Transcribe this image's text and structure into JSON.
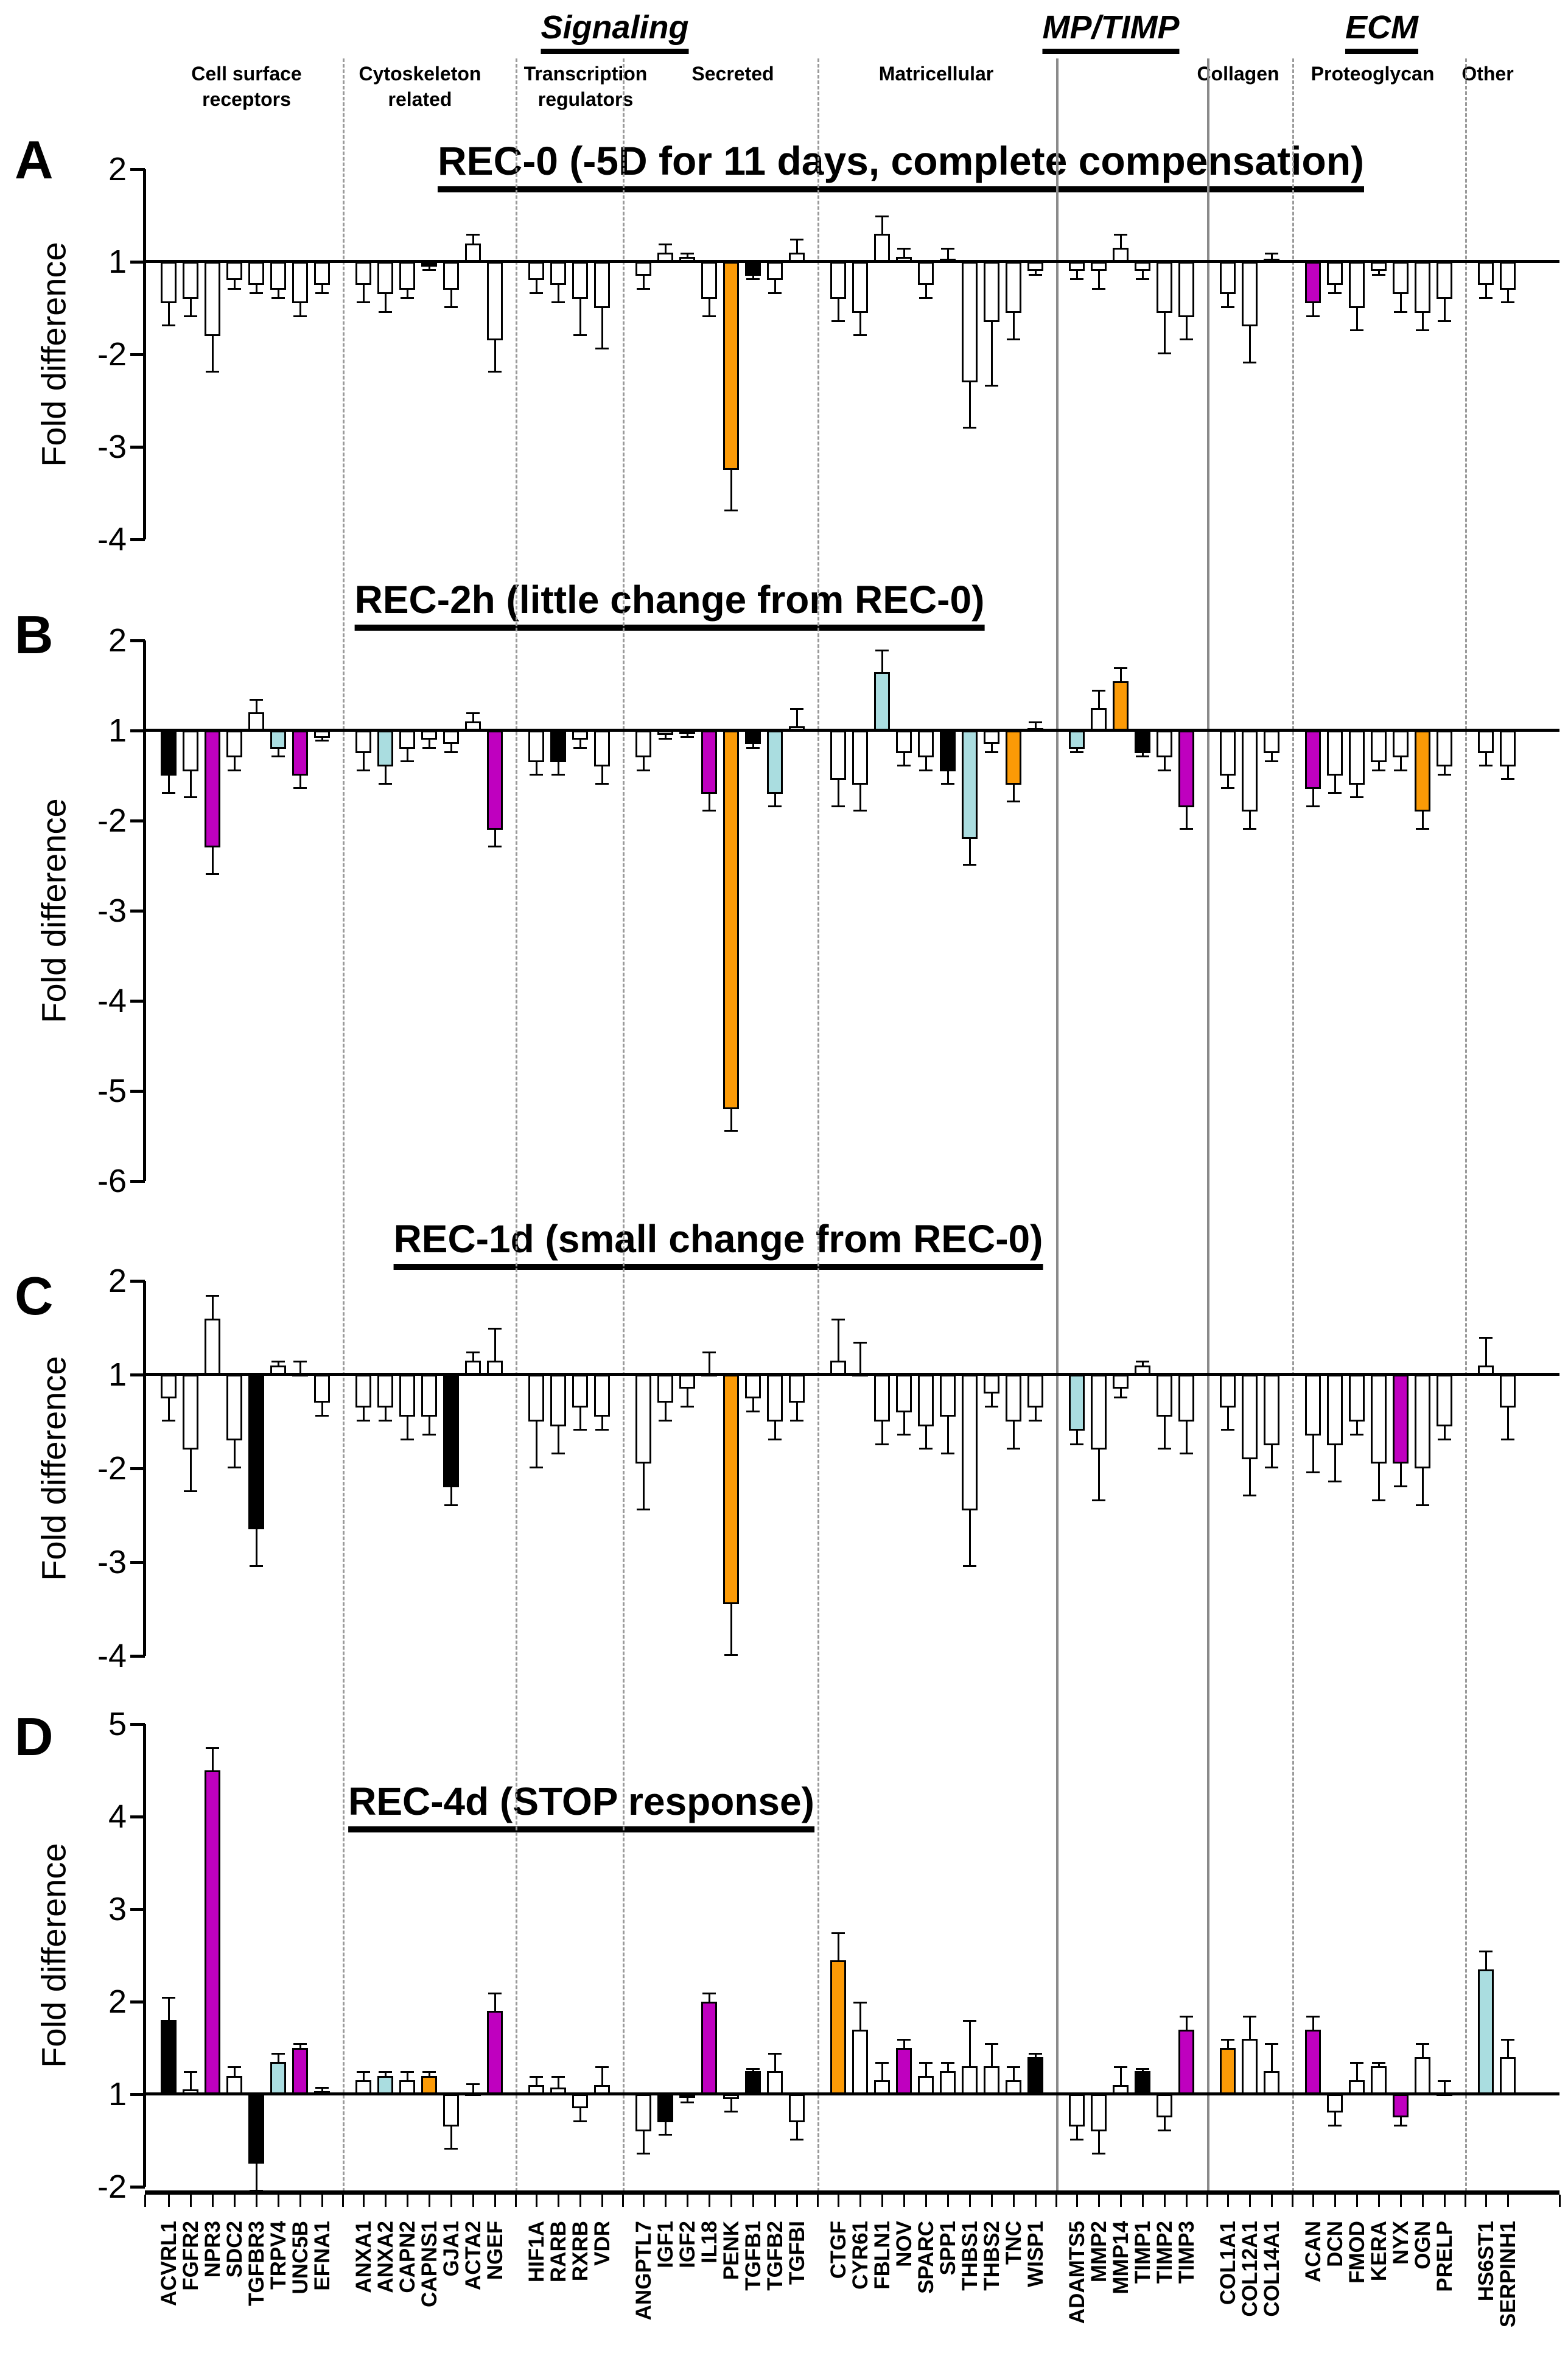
{
  "figure": {
    "categories": [
      {
        "label": "Signaling"
      },
      {
        "label": "MP/TIMP"
      },
      {
        "label": "ECM"
      }
    ],
    "subgroups": [
      "Cell surface receptors",
      "Cytoskeleton related",
      "Transcription regulators",
      "Secreted",
      "Matricellular",
      "Collagen",
      "Proteoglycan",
      "Other"
    ]
  },
  "chart_data": {
    "type": "bar",
    "ylabel": "Fold difference",
    "baseline_meaning": "fold difference of +/-1 (no change)",
    "color_map": {
      "w": "#ffffff",
      "k": "#000000",
      "m": "#bf00bf",
      "o": "#fb9a06",
      "c": "#aadde0"
    },
    "genes": [
      "ACVRL1",
      "FGFR2",
      "NPR3",
      "SDC2",
      "TGFBR3",
      "TRPV4",
      "UNC5B",
      "EFNA1",
      "ANXA1",
      "ANXA2",
      "CAPN2",
      "CAPNS1",
      "GJA1",
      "ACTA2",
      "NGEF",
      "HIF1A",
      "RARB",
      "RXRB",
      "VDR",
      "ANGPTL7",
      "IGF1",
      "IGF2",
      "IL18",
      "PENK",
      "TGFB1",
      "TGFB2",
      "TGFBI",
      "CTGF",
      "CYR61",
      "FBLN1",
      "NOV",
      "SPARC",
      "SPP1",
      "THBS1",
      "THBS2",
      "TNC",
      "WISP1",
      "ADAMTS5",
      "MMP2",
      "MMP14",
      "TIMP1",
      "TIMP2",
      "TIMP3",
      "COL1A1",
      "COL12A1",
      "COL14A1",
      "ACAN",
      "DCN",
      "FMOD",
      "KERA",
      "NYX",
      "OGN",
      "PRELP",
      "HS6ST1",
      "SERPINH1"
    ],
    "group_sizes": [
      8,
      7,
      4,
      8,
      10,
      6,
      3,
      7,
      2
    ],
    "panels": [
      {
        "id": "A",
        "label": "A",
        "title": "REC-0 (-5D for 11 days, complete compensation)",
        "yticks": [
          2,
          1,
          -2,
          -3,
          -4
        ],
        "values": [
          -1.45,
          -1.4,
          -1.8,
          -1.2,
          -1.25,
          -1.3,
          -1.45,
          -1.25,
          -1.25,
          -1.35,
          -1.3,
          -1.05,
          -1.3,
          1.2,
          -1.85,
          -1.2,
          -1.25,
          -1.4,
          -1.5,
          -1.15,
          1.1,
          1.05,
          -1.4,
          -3.25,
          -1.15,
          -1.2,
          1.1,
          -1.4,
          -1.55,
          1.3,
          1.05,
          -1.25,
          1.03,
          -2.3,
          -1.65,
          -1.55,
          -1.1,
          -1.1,
          -1.1,
          1.15,
          -1.1,
          -1.55,
          -1.6,
          -1.35,
          -1.7,
          1.03,
          -1.45,
          -1.25,
          -1.5,
          -1.1,
          -1.35,
          -1.55,
          -1.4,
          -1.25,
          -1.3
        ],
        "errors": [
          -1.7,
          -1.6,
          -2.2,
          -1.3,
          -1.35,
          -1.4,
          -1.6,
          -1.35,
          -1.45,
          -1.55,
          -1.4,
          -1.1,
          -1.5,
          1.3,
          -2.2,
          -1.35,
          -1.45,
          -1.8,
          -1.95,
          -1.3,
          1.2,
          1.1,
          -1.6,
          -3.7,
          -1.2,
          -1.35,
          1.25,
          -1.65,
          -1.8,
          1.5,
          1.15,
          -1.4,
          1.15,
          -2.8,
          -2.35,
          -1.85,
          -1.15,
          -1.2,
          -1.3,
          1.3,
          -1.2,
          -2.0,
          -1.85,
          -1.5,
          -2.1,
          1.1,
          -1.6,
          -1.35,
          -1.75,
          -1.15,
          -1.55,
          -1.75,
          -1.65,
          -1.4,
          -1.45
        ],
        "colors": [
          "w",
          "w",
          "w",
          "w",
          "w",
          "w",
          "w",
          "w",
          "w",
          "w",
          "w",
          "k",
          "w",
          "w",
          "w",
          "w",
          "w",
          "w",
          "w",
          "w",
          "w",
          "w",
          "w",
          "o",
          "k",
          "w",
          "w",
          "w",
          "w",
          "w",
          "w",
          "w",
          "w",
          "w",
          "w",
          "w",
          "w",
          "w",
          "w",
          "w",
          "w",
          "w",
          "w",
          "w",
          "w",
          "k",
          "m",
          "w",
          "w",
          "w",
          "w",
          "w",
          "w",
          "w",
          "w"
        ]
      },
      {
        "id": "B",
        "label": "B",
        "title": "REC-2h (little change from REC-0)",
        "yticks": [
          2,
          1,
          -2,
          -3,
          -4,
          -5,
          -6
        ],
        "values": [
          -1.5,
          -1.45,
          -2.3,
          -1.3,
          1.2,
          -1.2,
          -1.5,
          -1.08,
          -1.25,
          -1.4,
          -1.2,
          -1.1,
          -1.15,
          1.1,
          -2.1,
          -1.35,
          -1.35,
          -1.1,
          -1.4,
          -1.3,
          -1.05,
          -1.03,
          -1.7,
          -5.2,
          -1.15,
          -1.7,
          1.05,
          -1.55,
          -1.6,
          1.65,
          -1.25,
          -1.3,
          -1.45,
          -2.2,
          -1.15,
          -1.6,
          1.03,
          -1.2,
          1.25,
          1.55,
          -1.25,
          -1.3,
          -1.85,
          -1.5,
          -1.9,
          -1.25,
          -1.65,
          -1.5,
          -1.6,
          -1.35,
          -1.3,
          -1.9,
          -1.4,
          -1.25,
          -1.4
        ],
        "errors": [
          -1.7,
          -1.75,
          -2.6,
          -1.45,
          1.35,
          -1.3,
          -1.65,
          -1.12,
          -1.45,
          -1.6,
          -1.35,
          -1.2,
          -1.25,
          1.2,
          -2.3,
          -1.5,
          -1.5,
          -1.2,
          -1.6,
          -1.45,
          -1.1,
          -1.08,
          -1.9,
          -5.45,
          -1.2,
          -1.85,
          1.25,
          -1.85,
          -1.9,
          1.9,
          -1.4,
          -1.45,
          -1.6,
          -2.5,
          -1.25,
          -1.8,
          1.1,
          -1.25,
          1.45,
          1.7,
          -1.3,
          -1.45,
          -2.1,
          -1.65,
          -2.1,
          -1.35,
          -1.85,
          -1.7,
          -1.75,
          -1.45,
          -1.45,
          -2.1,
          -1.5,
          -1.4,
          -1.55
        ],
        "colors": [
          "k",
          "w",
          "m",
          "w",
          "w",
          "c",
          "m",
          "w",
          "w",
          "c",
          "w",
          "w",
          "w",
          "w",
          "m",
          "w",
          "k",
          "w",
          "w",
          "w",
          "w",
          "w",
          "m",
          "o",
          "k",
          "c",
          "w",
          "w",
          "w",
          "c",
          "w",
          "w",
          "k",
          "c",
          "w",
          "o",
          "w",
          "c",
          "w",
          "o",
          "k",
          "w",
          "m",
          "w",
          "w",
          "w",
          "m",
          "w",
          "w",
          "w",
          "w",
          "o",
          "w",
          "w",
          "w"
        ]
      },
      {
        "id": "C",
        "label": "C",
        "title": "REC-1d (small change from REC-0)",
        "yticks": [
          2,
          1,
          -2,
          -3,
          -4
        ],
        "values": [
          -1.25,
          -1.8,
          1.6,
          -1.7,
          -2.65,
          1.1,
          1.02,
          -1.3,
          -1.35,
          -1.35,
          -1.45,
          -1.45,
          -2.2,
          1.15,
          1.15,
          -1.5,
          -1.55,
          -1.35,
          -1.45,
          -1.95,
          -1.3,
          -1.15,
          1.02,
          -3.45,
          -1.25,
          -1.5,
          -1.3,
          1.15,
          1.02,
          -1.5,
          -1.4,
          -1.55,
          -1.45,
          -2.45,
          -1.2,
          -1.5,
          -1.35,
          -1.6,
          -1.8,
          -1.15,
          1.1,
          -1.45,
          -1.5,
          -1.35,
          -1.9,
          -1.75,
          -1.65,
          -1.75,
          -1.5,
          -1.95,
          -1.95,
          -2.0,
          -1.55,
          1.1,
          -1.35
        ],
        "errors": [
          -1.5,
          -2.25,
          1.85,
          -2.0,
          -3.05,
          1.15,
          1.15,
          -1.45,
          -1.5,
          -1.5,
          -1.7,
          -1.65,
          -2.4,
          1.25,
          1.5,
          -2.0,
          -1.85,
          -1.6,
          -1.6,
          -2.45,
          -1.5,
          -1.35,
          1.25,
          -4.0,
          -1.4,
          -1.7,
          -1.5,
          1.6,
          1.35,
          -1.75,
          -1.65,
          -1.8,
          -1.85,
          -3.05,
          -1.35,
          -1.8,
          -1.5,
          -1.75,
          -2.35,
          -1.25,
          1.15,
          -1.8,
          -1.85,
          -1.6,
          -2.3,
          -2.0,
          -2.05,
          -2.15,
          -1.65,
          -2.35,
          -2.2,
          -2.4,
          -1.7,
          1.4,
          -1.7
        ],
        "colors": [
          "w",
          "w",
          "w",
          "w",
          "k",
          "w",
          "w",
          "w",
          "w",
          "w",
          "w",
          "w",
          "k",
          "w",
          "w",
          "w",
          "w",
          "w",
          "w",
          "w",
          "w",
          "w",
          "w",
          "o",
          "w",
          "w",
          "w",
          "w",
          "w",
          "w",
          "w",
          "w",
          "w",
          "w",
          "w",
          "w",
          "w",
          "c",
          "w",
          "w",
          "w",
          "w",
          "w",
          "w",
          "w",
          "w",
          "w",
          "w",
          "w",
          "w",
          "m",
          "w",
          "w",
          "w",
          "w"
        ]
      },
      {
        "id": "D",
        "label": "D",
        "title": "REC-4d (STOP response)",
        "yticks": [
          5,
          4,
          3,
          2,
          1,
          -2
        ],
        "values": [
          1.8,
          1.05,
          4.5,
          1.2,
          -1.75,
          1.35,
          1.5,
          1.03,
          1.15,
          1.2,
          1.15,
          1.2,
          -1.35,
          1.02,
          1.9,
          1.1,
          1.07,
          -1.15,
          1.1,
          -1.4,
          -1.3,
          -1.03,
          2.0,
          -1.05,
          1.25,
          1.25,
          -1.3,
          2.45,
          1.7,
          1.15,
          1.5,
          1.2,
          1.25,
          1.3,
          1.3,
          1.15,
          1.4,
          -1.35,
          -1.4,
          1.1,
          1.25,
          -1.25,
          1.7,
          1.5,
          1.6,
          1.25,
          1.7,
          -1.2,
          1.15,
          1.3,
          -1.25,
          1.4,
          1.02,
          2.35,
          1.4
        ],
        "errors": [
          2.05,
          1.25,
          4.75,
          1.3,
          -2.05,
          1.45,
          1.55,
          1.08,
          1.25,
          1.25,
          1.25,
          1.25,
          -1.6,
          1.12,
          2.1,
          1.2,
          1.2,
          -1.3,
          1.3,
          -1.65,
          -1.45,
          -1.1,
          2.1,
          -1.2,
          1.28,
          1.45,
          -1.5,
          2.75,
          2.0,
          1.35,
          1.6,
          1.35,
          1.35,
          1.8,
          1.55,
          1.3,
          1.45,
          -1.5,
          -1.65,
          1.3,
          1.28,
          -1.4,
          1.85,
          1.6,
          1.85,
          1.55,
          1.85,
          -1.35,
          1.35,
          1.35,
          -1.35,
          1.55,
          1.15,
          2.55,
          1.6
        ],
        "colors": [
          "k",
          "w",
          "m",
          "w",
          "k",
          "c",
          "m",
          "w",
          "w",
          "c",
          "w",
          "o",
          "w",
          "k",
          "m",
          "w",
          "w",
          "w",
          "w",
          "w",
          "k",
          "w",
          "m",
          "w",
          "k",
          "w",
          "w",
          "o",
          "w",
          "w",
          "m",
          "w",
          "w",
          "w",
          "w",
          "w",
          "k",
          "w",
          "w",
          "w",
          "k",
          "w",
          "m",
          "o",
          "w",
          "w",
          "m",
          "w",
          "w",
          "w",
          "m",
          "w",
          "k",
          "c",
          "w"
        ]
      }
    ]
  }
}
